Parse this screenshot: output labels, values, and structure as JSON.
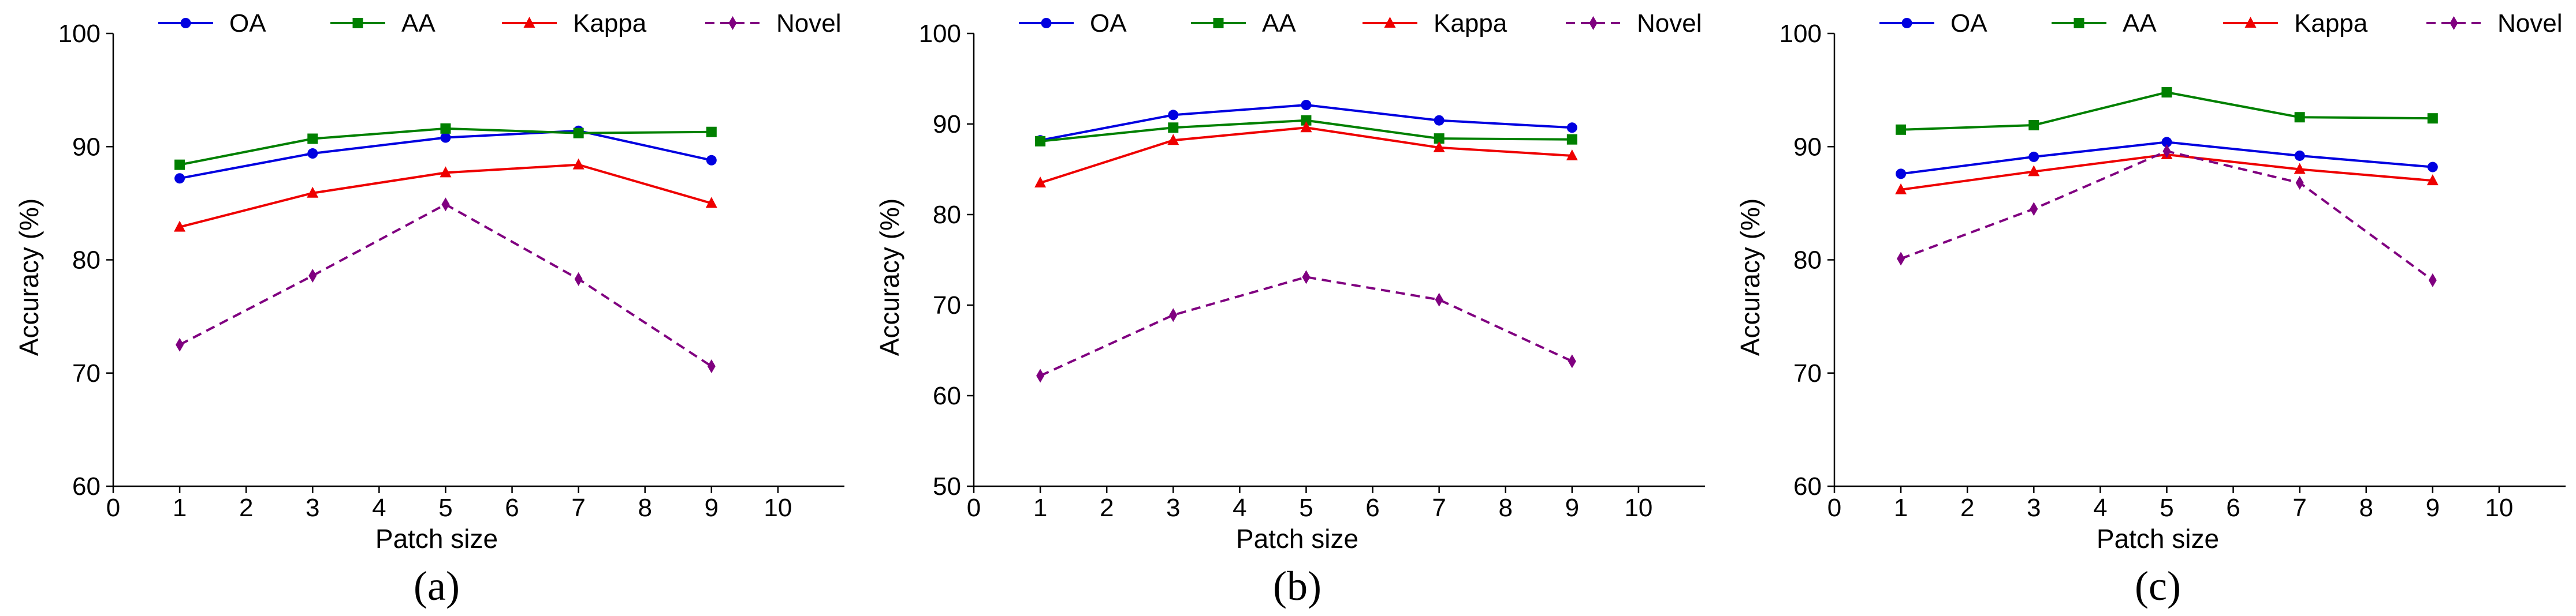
{
  "colors": {
    "OA": "#0000e0",
    "AA": "#008000",
    "Kappa": "#ee0000",
    "Novel": "#800080",
    "axis": "#000000"
  },
  "chart_data": [
    {
      "type": "line",
      "panel_label": "(a)",
      "xlabel": "Patch size",
      "ylabel": "Accuracy (%)",
      "xlim": [
        0,
        11
      ],
      "ylim": [
        60,
        100
      ],
      "xticks": [
        0,
        1,
        2,
        3,
        4,
        5,
        6,
        7,
        8,
        9,
        10
      ],
      "yticks": [
        60,
        70,
        80,
        90,
        100
      ],
      "grid": false,
      "legend_position": "top",
      "x": [
        1,
        3,
        5,
        7,
        9
      ],
      "series": [
        {
          "name": "OA",
          "values": [
            87.2,
            89.4,
            90.8,
            91.4,
            88.8
          ],
          "color": "#0000e0",
          "marker": "circle",
          "dashed": false
        },
        {
          "name": "AA",
          "values": [
            88.4,
            90.7,
            91.6,
            91.2,
            91.3
          ],
          "color": "#008000",
          "marker": "square",
          "dashed": false
        },
        {
          "name": "Kappa",
          "values": [
            82.9,
            85.9,
            87.7,
            88.4,
            85.0
          ],
          "color": "#ee0000",
          "marker": "triangle",
          "dashed": false
        },
        {
          "name": "Novel",
          "values": [
            72.5,
            78.6,
            84.9,
            78.3,
            70.6
          ],
          "color": "#800080",
          "marker": "diamond",
          "dashed": true
        }
      ]
    },
    {
      "type": "line",
      "panel_label": "(b)",
      "xlabel": "Patch size",
      "ylabel": "Accuracy (%)",
      "xlim": [
        0,
        11
      ],
      "ylim": [
        50,
        100
      ],
      "xticks": [
        0,
        1,
        2,
        3,
        4,
        5,
        6,
        7,
        8,
        9,
        10
      ],
      "yticks": [
        50,
        60,
        70,
        80,
        90,
        100
      ],
      "grid": false,
      "legend_position": "top",
      "x": [
        1,
        3,
        5,
        7,
        9
      ],
      "series": [
        {
          "name": "OA",
          "values": [
            88.2,
            91.0,
            92.1,
            90.4,
            89.6
          ],
          "color": "#0000e0",
          "marker": "circle",
          "dashed": false
        },
        {
          "name": "AA",
          "values": [
            88.1,
            89.6,
            90.4,
            88.4,
            88.3
          ],
          "color": "#008000",
          "marker": "square",
          "dashed": false
        },
        {
          "name": "Kappa",
          "values": [
            83.5,
            88.2,
            89.6,
            87.4,
            86.5
          ],
          "color": "#ee0000",
          "marker": "triangle",
          "dashed": false
        },
        {
          "name": "Novel",
          "values": [
            62.2,
            68.9,
            73.1,
            70.6,
            63.8
          ],
          "color": "#800080",
          "marker": "diamond",
          "dashed": true
        }
      ]
    },
    {
      "type": "line",
      "panel_label": "(c)",
      "xlabel": "Patch size",
      "ylabel": "Accuracy (%)",
      "xlim": [
        0,
        11
      ],
      "ylim": [
        60,
        100
      ],
      "xticks": [
        0,
        1,
        2,
        3,
        4,
        5,
        6,
        7,
        8,
        9,
        10
      ],
      "yticks": [
        60,
        70,
        80,
        90,
        100
      ],
      "grid": false,
      "legend_position": "top",
      "x": [
        1,
        3,
        5,
        7,
        9
      ],
      "series": [
        {
          "name": "OA",
          "values": [
            87.6,
            89.1,
            90.4,
            89.2,
            88.2
          ],
          "color": "#0000e0",
          "marker": "circle",
          "dashed": false
        },
        {
          "name": "AA",
          "values": [
            91.5,
            91.9,
            94.8,
            92.6,
            92.5
          ],
          "color": "#008000",
          "marker": "square",
          "dashed": false
        },
        {
          "name": "Kappa",
          "values": [
            86.2,
            87.8,
            89.3,
            88.0,
            87.0
          ],
          "color": "#ee0000",
          "marker": "triangle",
          "dashed": false
        },
        {
          "name": "Novel",
          "values": [
            80.1,
            84.5,
            89.6,
            86.8,
            78.2
          ],
          "color": "#800080",
          "marker": "diamond",
          "dashed": true
        }
      ]
    }
  ]
}
